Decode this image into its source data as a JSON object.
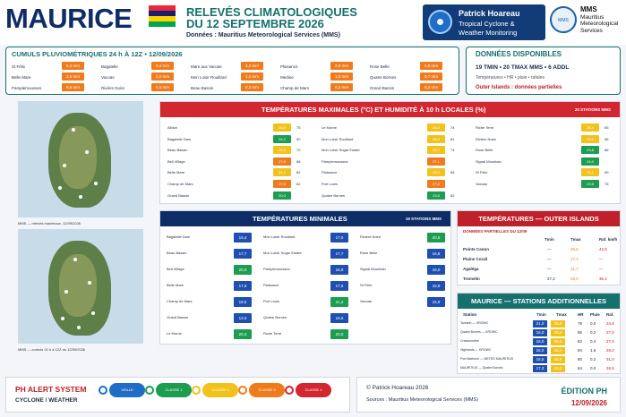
{
  "header": {
    "title": "MAURICE",
    "subtitle_line1": "RELEVÉS CLIMATOLOGIQUES",
    "subtitle_line2": "DU 12 SEPTEMBRE 2026",
    "source_line": "Données : Mauritius Meteorological Services (MMS)",
    "flag_colors": [
      "#ea2839",
      "#1a206d",
      "#ffd500",
      "#00a551"
    ],
    "ph_logo": {
      "name": "Patrick Hoareau",
      "line2": "Tropical Cyclone &",
      "line3": "Weather Monitoring"
    },
    "mms_logo": {
      "abbr": "MMS",
      "line1": "Mauritius",
      "line2": "Meteorological",
      "line3": "Services",
      "seal_text": "MMS"
    }
  },
  "rain": {
    "title": "CUMULS PLUVIOMÉTRIQUES 24 h À 12Z • 12/09/2026",
    "items": [
      {
        "name": "St Félix",
        "value": "5,2 mm"
      },
      {
        "name": "Bagatelle",
        "value": "3,4 mm"
      },
      {
        "name": "Mare aux Vacoas",
        "value": "3,0 mm"
      },
      {
        "name": "Plaisance",
        "value": "2,8 mm"
      },
      {
        "name": "Rose Belle",
        "value": "2,8 mm"
      },
      {
        "name": "Belle Mare",
        "value": "2,6 mm"
      },
      {
        "name": "Vacoas",
        "value": "2,0 mm"
      },
      {
        "name": "Mon Loisir Rouillard",
        "value": "1,0 mm"
      },
      {
        "name": "Medine",
        "value": "1,0 mm"
      },
      {
        "name": "Quatre Bornes",
        "value": "0,7 mm"
      },
      {
        "name": "Pamplemousses",
        "value": "0,5 mm"
      },
      {
        "name": "Rivière Noire",
        "value": "0,4 mm"
      },
      {
        "name": "Beau Bassin",
        "value": "0,2 mm"
      },
      {
        "name": "Champ de Mars",
        "value": "0,2 mm"
      },
      {
        "name": "Grand Bassin",
        "value": "0,2 mm"
      }
    ]
  },
  "disponibles": {
    "title": "DONNÉES DISPONIBLES",
    "line1": "19 TMIN • 20 TMAX MMS • 6 ADDL",
    "line2": "Températures • HR • pluie • rafales",
    "line3": "Outer Islands : données partielles"
  },
  "maps": {
    "caption1": "MMS — relevés maximaux, 12/09/2026",
    "caption2": "MMS — cumuls 24 h à 12Z du 12/09/2026"
  },
  "tmax": {
    "title": "TEMPÉRATURES MAXIMALES (°C) ET HUMIDITÉ À 10 h LOCALES (%)",
    "count": "20 STATIONS MMS",
    "col1": [
      {
        "name": "Albion",
        "t": "25,0",
        "h": "75",
        "c": "#f2c21b"
      },
      {
        "name": "Bagatelle Dam",
        "t": "24,2",
        "h": "90",
        "c": "#1d9d50"
      },
      {
        "name": "Beau Bassin",
        "t": "25,2",
        "h": "70",
        "c": "#f2c21b"
      },
      {
        "name": "Bell Village",
        "t": "27,0",
        "h": "68",
        "c": "#f07b1d"
      },
      {
        "name": "Belle Mare",
        "t": "26,1",
        "h": "82",
        "c": "#f2c21b"
      },
      {
        "name": "Champ de Mars",
        "t": "27,0",
        "h": "62",
        "c": "#f07b1d"
      },
      {
        "name": "Grand Bassin",
        "t": "20,0",
        "h": "",
        "c": "#1d9d50"
      }
    ],
    "col2": [
      {
        "name": "Le Morne",
        "t": "26,0",
        "h": "74",
        "c": "#f2c21b"
      },
      {
        "name": "Mon Loisir Rouillard",
        "t": "25,0",
        "h": "81",
        "c": "#f2c21b"
      },
      {
        "name": "Mon Loisir Sugar Estate",
        "t": "25,0",
        "h": "74",
        "c": "#f2c21b"
      },
      {
        "name": "Pamplemousses",
        "t": "27,1",
        "h": "",
        "c": "#f07b1d"
      },
      {
        "name": "Plaisance",
        "t": "25,0",
        "h": "84",
        "c": "#f2c21b"
      },
      {
        "name": "Port Louis",
        "t": "27,6",
        "h": "",
        "c": "#f07b1d"
      },
      {
        "name": "Quatre Bornes",
        "t": "23,6",
        "h": "82",
        "c": "#1d9d50"
      }
    ],
    "col3": [
      {
        "name": "Riche Terre",
        "t": "26,4",
        "h": "65",
        "c": "#f2c21b"
      },
      {
        "name": "Rivière Noire",
        "t": "26,0",
        "h": "56",
        "c": "#f2c21b"
      },
      {
        "name": "Rose Belle",
        "t": "23,8",
        "h": "86",
        "c": "#1d9d50"
      },
      {
        "name": "Signal Mountain",
        "t": "24,0",
        "h": "",
        "c": "#1d9d50"
      },
      {
        "name": "St Félix",
        "t": "25,1",
        "h": "99",
        "c": "#f2c21b"
      },
      {
        "name": "Vacoas",
        "t": "23,5",
        "h": "75",
        "c": "#1d9d50"
      }
    ]
  },
  "tmin": {
    "title": "TEMPÉRATURES MINIMALES",
    "count": "19 STATIONS MMS",
    "col1": [
      {
        "name": "Bagatelle Dam",
        "t": "15,4"
      },
      {
        "name": "Beau Bassin",
        "t": "17,7"
      },
      {
        "name": "Bell Village",
        "t": "20,0"
      },
      {
        "name": "Belle Mare",
        "t": "17,9"
      },
      {
        "name": "Champ de Mars",
        "t": "18,6"
      },
      {
        "name": "Grand Bassin",
        "t": "13,0"
      },
      {
        "name": "Le Morne",
        "t": "20,3"
      }
    ],
    "col2": [
      {
        "name": "Mon Loisir Rouillard",
        "t": "17,0"
      },
      {
        "name": "Mon Loisir Sugar Estate",
        "t": "17,7"
      },
      {
        "name": "Pamplemousses",
        "t": "16,9"
      },
      {
        "name": "Plaisance",
        "t": "17,6"
      },
      {
        "name": "Port Louis",
        "t": "21,4"
      },
      {
        "name": "Quatre Bornes",
        "t": "16,6"
      },
      {
        "name": "Riche Terre",
        "t": "20,0"
      }
    ],
    "col3": [
      {
        "name": "Rivière Noire",
        "t": "20,5"
      },
      {
        "name": "Rose Belle",
        "t": "16,8"
      },
      {
        "name": "Signal Mountain",
        "t": "18,0"
      },
      {
        "name": "St Félix",
        "t": "18,8"
      },
      {
        "name": "Vacoas",
        "t": "15,9"
      }
    ]
  },
  "outer": {
    "title": "TEMPÉRATURES — OUTER ISLANDS",
    "partial": "DONNÉES PARTIELLES DU 12/09",
    "headers": [
      "Tmin",
      "Tmax",
      "Raf. km/h"
    ],
    "rows": [
      {
        "name": "Pointe Canon",
        "tmin": "—",
        "tmax": "26,5",
        "raf": "42,5"
      },
      {
        "name": "Plaine Corail",
        "tmin": "—",
        "tmax": "27,4",
        "raf": "—"
      },
      {
        "name": "Agaléga",
        "tmin": "—",
        "tmax": "31,7",
        "raf": "—"
      },
      {
        "name": "Tromelin",
        "tmin": "27,2",
        "tmax": "28,6",
        "raf": "36,4"
      }
    ]
  },
  "addl": {
    "title": "MAURICE — STATIONS ADDITIONNELLES",
    "headers": [
      "Station",
      "Tmin",
      "Tmax",
      "HR",
      "Pluie",
      "Raf."
    ],
    "rows": [
      {
        "name": "Tamarin — KROWC",
        "tmin": "21,0",
        "tmax": "25,8",
        "hr": "78",
        "pluie": "0,0",
        "raf": "34,8"
      },
      {
        "name": "Quatre Bornes — KROWC",
        "tmin": "16,0",
        "tmax": "23,4",
        "hr": "86",
        "pluie": "0,2",
        "raf": "27,0"
      },
      {
        "name": "Cressonnière",
        "tmin": "16,0",
        "tmax": "25,0",
        "hr": "82",
        "pluie": "0,4",
        "raf": "27,0"
      },
      {
        "name": "Highlands — KROWC",
        "tmin": "16,0",
        "tmax": "23,4",
        "hr": "84",
        "pluie": "1,6",
        "raf": "28,2"
      },
      {
        "name": "Port Mathurin — METEO MAURITIUS",
        "tmin": "16,5",
        "tmax": "25,6",
        "hr": "80",
        "pluie": "0,2",
        "raf": "31,0"
      },
      {
        "name": "MAURITIUS — Quatre Bornes",
        "tmin": "17,3",
        "tmax": "23,2",
        "hr": "84",
        "pluie": "0,0",
        "raf": "26,5"
      }
    ]
  },
  "footer": {
    "alert_title": "PH ALERT SYSTEM",
    "alert_sub": "CYCLONE / WEATHER",
    "levels": [
      {
        "label": "VEILLE",
        "color": "#1f6dc4"
      },
      {
        "label": "CLASSE 1",
        "color": "#1d9d50"
      },
      {
        "label": "CLASSE 2",
        "color": "#f2c21b"
      },
      {
        "label": "CLASSE 3",
        "color": "#f07b1d"
      },
      {
        "label": "CLASSE 4",
        "color": "#d22630"
      }
    ],
    "copyright": "© Patrick Hoareau 2026",
    "sources": "Sources : Mauritius Meteorological Services (MMS)",
    "edition": "ÉDITION PH",
    "edition_date": "12/09/2026"
  }
}
